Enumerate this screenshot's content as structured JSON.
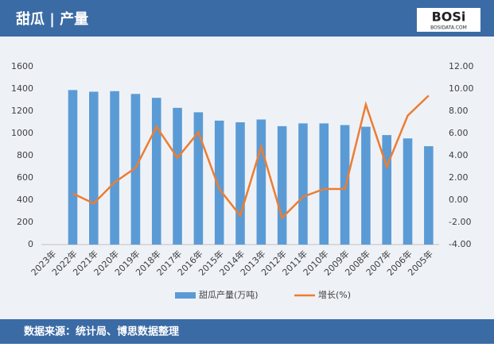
{
  "header": {
    "title": "甜瓜 | 产量",
    "logo": "BOSi",
    "logo_sub": "BOSIDATA.COM"
  },
  "footer": {
    "source": "数据来源：统计局、博思数据整理"
  },
  "chart_data": {
    "type": "bar",
    "categories": [
      "2023年",
      "2022年",
      "2021年",
      "2020年",
      "2019年",
      "2018年",
      "2017年",
      "2016年",
      "2015年",
      "2014年",
      "2013年",
      "2012年",
      "2011年",
      "2010年",
      "2009年",
      "2008年",
      "2007年",
      "2006年",
      "2005年"
    ],
    "series": [
      {
        "name": "甜瓜产量(万吨)",
        "type": "bar",
        "color": "#5b9bd5",
        "values": [
          null,
          1390,
          1375,
          1380,
          1355,
          1320,
          1230,
          1190,
          1115,
          1100,
          1125,
          1065,
          1090,
          1090,
          1075,
          1060,
          985,
          955,
          885
        ]
      },
      {
        "name": "增长(%)",
        "type": "line",
        "axis": "y2",
        "color": "#ed7d31",
        "values": [
          null,
          0.6,
          -0.3,
          1.6,
          2.9,
          6.6,
          3.8,
          6.1,
          1.0,
          -1.4,
          4.8,
          -1.6,
          0.3,
          1.0,
          1.0,
          8.6,
          3.0,
          7.6,
          9.4
        ]
      }
    ],
    "ylim": [
      0,
      1600
    ],
    "yticks": [
      0,
      200,
      400,
      600,
      800,
      1000,
      1200,
      1400,
      1600
    ],
    "y2lim": [
      -4,
      12
    ],
    "y2ticks": [
      {
        "value": -4,
        "label": "-4.00"
      },
      {
        "value": -2,
        "label": "-2.00"
      },
      {
        "value": 0,
        "label": "0.00"
      },
      {
        "value": 2,
        "label": "2.00"
      },
      {
        "value": 4,
        "label": "4.00"
      },
      {
        "value": 6,
        "label": "6.00"
      },
      {
        "value": 8,
        "label": "8.00"
      },
      {
        "value": 10,
        "label": "10.00"
      },
      {
        "value": 12,
        "label": "12.00"
      }
    ],
    "grid": false,
    "legend": "bottom"
  }
}
